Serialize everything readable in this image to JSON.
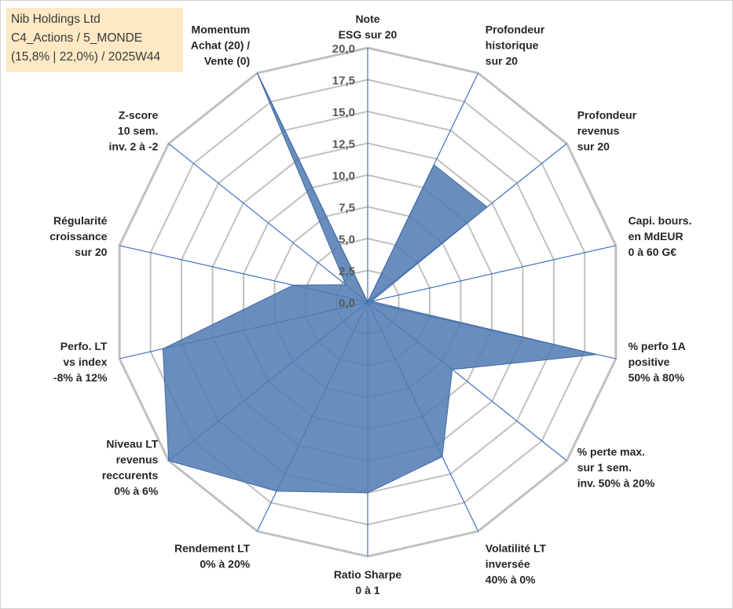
{
  "info": {
    "line1": "Nib Holdings Ltd",
    "line2": "C4_Actions / 5_MONDE",
    "line3": "(15,8% | 22,0%) / 2025W44"
  },
  "colors": {
    "fill": "#4f7ab3",
    "stroke": "#3f66a2",
    "ring": "#c0c0c0",
    "spoke": "#4472c4"
  },
  "chart_data": {
    "type": "radar",
    "title": "",
    "rmax": 20,
    "ticks": [
      "0,0",
      "2,5",
      "5,0",
      "7,5",
      "10,0",
      "12,5",
      "15,0",
      "17,5",
      "20,0"
    ],
    "axes": [
      {
        "label": [
          "Note",
          "ESG sur 20"
        ],
        "value": 0
      },
      {
        "label": [
          "Profondeur",
          "historique",
          "sur 20"
        ],
        "value": 12
      },
      {
        "label": [
          "Profondeur",
          "revenus",
          "sur 20"
        ],
        "value": 12
      },
      {
        "label": [
          "Capi. bours.",
          "en MdEUR",
          "0 à 60 G€"
        ],
        "value": 0.3
      },
      {
        "label": [
          "% perfo 1A",
          "positive",
          "50% à 80%"
        ],
        "value": 18.5
      },
      {
        "label": [
          "% perte max.",
          "sur 1 sem.",
          "inv. 50% à 20%"
        ],
        "value": 8.5
      },
      {
        "label": [
          "Volatilité LT",
          "inversée",
          "40% à 0%"
        ],
        "value": 13.5
      },
      {
        "label": [
          "Ratio Sharpe",
          "0 à 1"
        ],
        "value": 15
      },
      {
        "label": [
          "Rendement LT",
          "0% à 20%"
        ],
        "value": 16.5
      },
      {
        "label": [
          "Niveau LT",
          "revenus",
          "reccurents",
          "0% à 6%"
        ],
        "value": 20
      },
      {
        "label": [
          "Perfo. LT",
          "vs index",
          "-8% à 12%"
        ],
        "value": 16.5
      },
      {
        "label": [
          "Régularité",
          "croissance",
          "sur 20"
        ],
        "value": 6
      },
      {
        "label": [
          "Z-score",
          "10 sem.",
          "inv. 2 à -2"
        ],
        "value": 2.2
      },
      {
        "label": [
          "Momentum",
          "Achat (20) /",
          "Vente (0)"
        ],
        "value": 20
      }
    ]
  }
}
